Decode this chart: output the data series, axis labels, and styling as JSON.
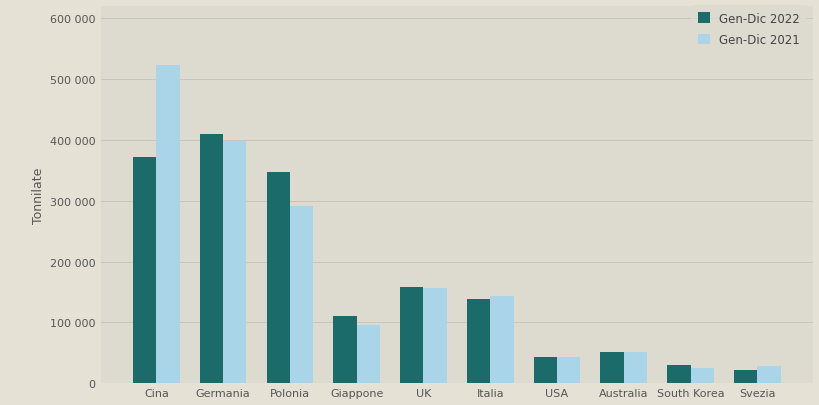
{
  "categories": [
    "Cina",
    "Germania",
    "Polonia",
    "Giappone",
    "UK",
    "Italia",
    "USA",
    "Australia",
    "South Korea",
    "Svezia"
  ],
  "values_2022": [
    372000,
    410000,
    348000,
    110000,
    158000,
    138000,
    43000,
    52000,
    30000,
    22000
  ],
  "values_2021": [
    523000,
    398000,
    291000,
    96000,
    157000,
    143000,
    43000,
    52000,
    25000,
    29000
  ],
  "color_2022": "#1c6b6b",
  "color_2021": "#aad4e8",
  "ylabel": "Tonnilate",
  "legend_2022": "Gen-Dic 2022",
  "legend_2021": "Gen-Dic 2021",
  "ylim": [
    0,
    620000
  ],
  "yticks": [
    0,
    100000,
    200000,
    300000,
    400000,
    500000,
    600000
  ],
  "background_color": "#e5e2d5",
  "plot_bg_color": "#dddad0",
  "bar_width": 0.35,
  "grid_color": "#c8c5ba"
}
